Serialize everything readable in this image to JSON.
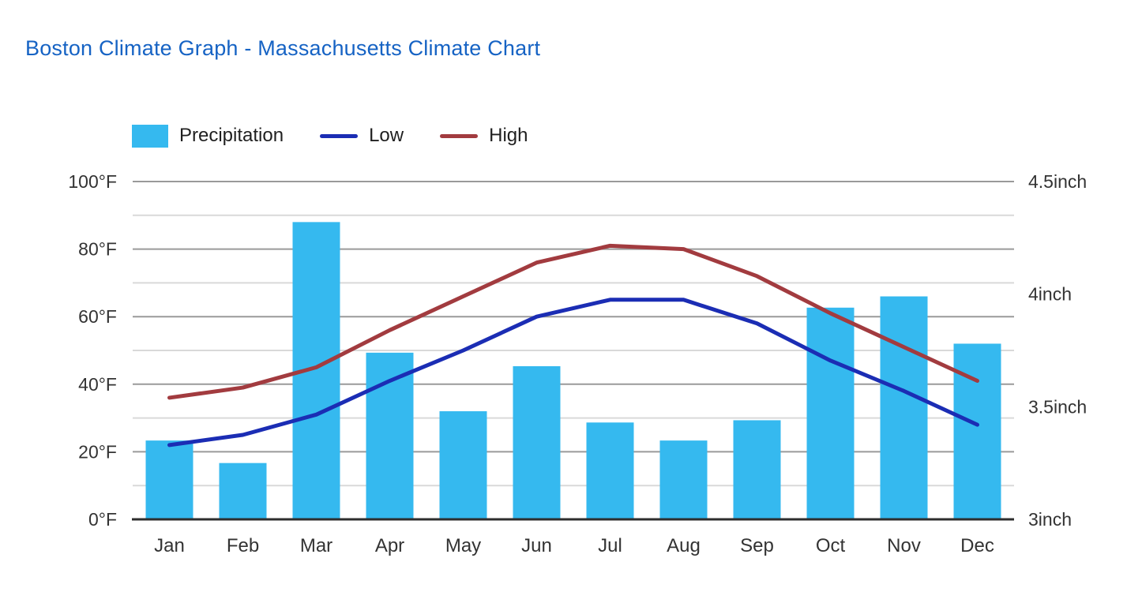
{
  "page": {
    "title": "Boston Climate Graph - Massachusetts Climate Chart",
    "title_color": "#1663c4"
  },
  "legend": [
    {
      "label": "Precipitation",
      "swatch": "rect",
      "color": "#35b9ef"
    },
    {
      "label": "Low",
      "swatch": "line",
      "color": "#1b2db4"
    },
    {
      "label": "High",
      "swatch": "line",
      "color": "#a23b3f"
    }
  ],
  "chart_data": {
    "type": "bar+line combo",
    "title": "Boston Climate Graph - Massachusetts Climate Chart",
    "categories": [
      "Jan",
      "Feb",
      "Mar",
      "Apr",
      "May",
      "Jun",
      "Jul",
      "Aug",
      "Sep",
      "Oct",
      "Nov",
      "Dec"
    ],
    "series": [
      {
        "name": "Precipitation",
        "type": "bar",
        "axis": "right",
        "unit": "inch",
        "color": "#35b9ef",
        "values": [
          3.35,
          3.25,
          4.32,
          3.74,
          3.48,
          3.68,
          3.43,
          3.35,
          3.44,
          3.94,
          3.99,
          3.78
        ]
      },
      {
        "name": "Low",
        "type": "line",
        "axis": "left",
        "unit": "°F",
        "color": "#1b2db4",
        "values": [
          22,
          25,
          31,
          41,
          50,
          60,
          65,
          65,
          58,
          47,
          38,
          28
        ]
      },
      {
        "name": "High",
        "type": "line",
        "axis": "left",
        "unit": "°F",
        "color": "#a23b3f",
        "values": [
          36,
          39,
          45,
          56,
          66,
          76,
          81,
          80,
          72,
          61,
          51,
          41
        ]
      }
    ],
    "left_axis": {
      "min": 0,
      "max": 100,
      "minor_step": 10,
      "ticks": [
        {
          "label": "0°F",
          "value": 0
        },
        {
          "label": "20°F",
          "value": 20
        },
        {
          "label": "40°F",
          "value": 40
        },
        {
          "label": "60°F",
          "value": 60
        },
        {
          "label": "80°F",
          "value": 80
        },
        {
          "label": "100°F",
          "value": 100
        }
      ]
    },
    "right_axis": {
      "min": 3,
      "max": 4.5,
      "ticks": [
        {
          "label": "3inch",
          "value": 3
        },
        {
          "label": "3.5inch",
          "value": 3.5
        },
        {
          "label": "4inch",
          "value": 4
        },
        {
          "label": "4.5inch",
          "value": 4.5
        }
      ]
    },
    "grid": true,
    "legend_position": "top-left",
    "colors": {
      "major_grid": "#9a9a9a",
      "minor_grid": "#d9d9d9",
      "baseline": "#2d2d2d",
      "axis_text": "#333333"
    }
  }
}
